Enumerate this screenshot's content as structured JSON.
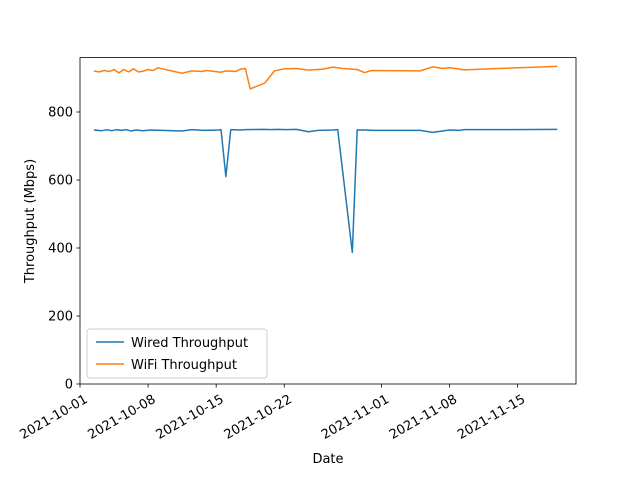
{
  "chart_data": {
    "type": "line",
    "title": "",
    "xlabel": "Date",
    "ylabel": "Throughput (Mbps)",
    "xlim": [
      "2021-10-01",
      "2021-11-21"
    ],
    "ylim": [
      0,
      960
    ],
    "x_ticks": [
      "2021-10-01",
      "2021-10-08",
      "2021-10-15",
      "2021-10-22",
      "2021-11-01",
      "2021-11-08",
      "2021-11-15"
    ],
    "y_ticks": [
      0,
      200,
      400,
      600,
      800
    ],
    "grid": false,
    "legend_position": "lower-left",
    "series": [
      {
        "name": "Wired Throughput",
        "color": "#1f77b4",
        "points": [
          [
            "2021-10-02T12:00",
            747
          ],
          [
            "2021-10-03T06:00",
            745
          ],
          [
            "2021-10-03T18:00",
            748
          ],
          [
            "2021-10-04T06:00",
            745
          ],
          [
            "2021-10-04T18:00",
            748
          ],
          [
            "2021-10-05T06:00",
            746
          ],
          [
            "2021-10-05T18:00",
            748
          ],
          [
            "2021-10-06T06:00",
            744
          ],
          [
            "2021-10-06T18:00",
            747
          ],
          [
            "2021-10-07T12:00",
            745
          ],
          [
            "2021-10-08T06:00",
            747
          ],
          [
            "2021-10-11T12:00",
            744
          ],
          [
            "2021-10-12T12:00",
            748
          ],
          [
            "2021-10-13T18:00",
            746
          ],
          [
            "2021-10-15T06:00",
            747
          ],
          [
            "2021-10-15T12:00",
            748
          ],
          [
            "2021-10-16T00:00",
            610
          ],
          [
            "2021-10-16T12:00",
            748
          ],
          [
            "2021-10-17T12:00",
            747
          ],
          [
            "2021-10-18T00:00",
            748
          ],
          [
            "2021-10-20T00:00",
            749
          ],
          [
            "2021-10-20T12:00",
            748
          ],
          [
            "2021-10-21T06:00",
            749
          ],
          [
            "2021-10-22T06:00",
            748
          ],
          [
            "2021-10-23T06:00",
            749
          ],
          [
            "2021-10-24T12:00",
            742
          ],
          [
            "2021-10-25T12:00",
            746
          ],
          [
            "2021-10-27T00:00",
            747
          ],
          [
            "2021-10-27T12:00",
            748
          ],
          [
            "2021-10-29T00:00",
            387
          ],
          [
            "2021-10-29T12:00",
            747
          ],
          [
            "2021-10-30T06:00",
            747
          ],
          [
            "2021-10-31T06:00",
            746
          ],
          [
            "2021-11-05T00:00",
            746
          ],
          [
            "2021-11-06T06:00",
            740
          ],
          [
            "2021-11-08T00:00",
            747
          ],
          [
            "2021-11-09T00:00",
            746
          ],
          [
            "2021-11-09T12:00",
            748
          ],
          [
            "2021-11-12T00:00",
            748
          ],
          [
            "2021-11-19T00:00",
            749
          ]
        ]
      },
      {
        "name": "WiFi Throughput",
        "color": "#ff7f0e",
        "points": [
          [
            "2021-10-02T12:00",
            920
          ],
          [
            "2021-10-03T00:00",
            918
          ],
          [
            "2021-10-03T12:00",
            922
          ],
          [
            "2021-10-04T00:00",
            919
          ],
          [
            "2021-10-04T12:00",
            925
          ],
          [
            "2021-10-05T00:00",
            915
          ],
          [
            "2021-10-05T12:00",
            925
          ],
          [
            "2021-10-06T00:00",
            918
          ],
          [
            "2021-10-06T12:00",
            927
          ],
          [
            "2021-10-07T00:00",
            918
          ],
          [
            "2021-10-07T12:00",
            920
          ],
          [
            "2021-10-08T00:00",
            925
          ],
          [
            "2021-10-08T12:00",
            922
          ],
          [
            "2021-10-09T00:00",
            930
          ],
          [
            "2021-10-11T12:00",
            914
          ],
          [
            "2021-10-12T12:00",
            921
          ],
          [
            "2021-10-13T12:00",
            919
          ],
          [
            "2021-10-14T00:00",
            922
          ],
          [
            "2021-10-15T12:00",
            917
          ],
          [
            "2021-10-16T00:00",
            921
          ],
          [
            "2021-10-17T00:00",
            919
          ],
          [
            "2021-10-17T12:00",
            926
          ],
          [
            "2021-10-18T00:00",
            928
          ],
          [
            "2021-10-18T12:00",
            868
          ],
          [
            "2021-10-20T00:00",
            885
          ],
          [
            "2021-10-21T00:00",
            921
          ],
          [
            "2021-10-22T00:00",
            927
          ],
          [
            "2021-10-23T06:00",
            928
          ],
          [
            "2021-10-24T12:00",
            923
          ],
          [
            "2021-10-26T00:00",
            926
          ],
          [
            "2021-10-27T00:00",
            932
          ],
          [
            "2021-10-28T00:00",
            928
          ],
          [
            "2021-10-29T12:00",
            925
          ],
          [
            "2021-10-30T06:00",
            916
          ],
          [
            "2021-10-31T00:00",
            922
          ],
          [
            "2021-11-05T00:00",
            921
          ],
          [
            "2021-11-06T06:00",
            933
          ],
          [
            "2021-11-07T06:00",
            928
          ],
          [
            "2021-11-08T00:00",
            930
          ],
          [
            "2021-11-09T00:00",
            926
          ],
          [
            "2021-11-09T12:00",
            924
          ],
          [
            "2021-11-12T00:00",
            927
          ],
          [
            "2021-11-19T00:00",
            934
          ]
        ]
      }
    ]
  }
}
